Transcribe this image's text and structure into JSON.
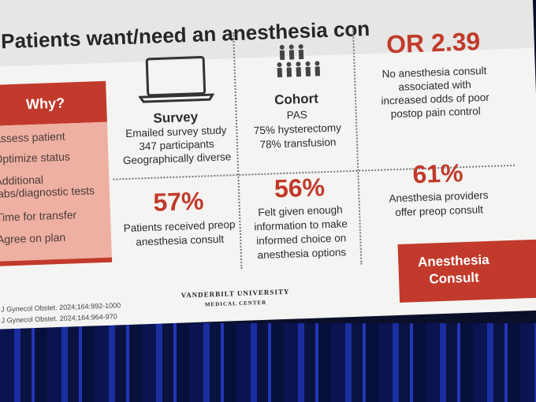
{
  "header": {
    "title": "Patients want/need an anesthesia con"
  },
  "sidebar": {
    "heading": "Why?",
    "items": [
      "Assess patient",
      "Optimize status",
      "Additional",
      "labs/diagnostic tests",
      "Time for transfer",
      "Agree on plan"
    ]
  },
  "survey": {
    "label": "Survey",
    "lines": [
      "Emailed survey study",
      "347 participants",
      "Geographically diverse"
    ]
  },
  "cohort": {
    "label": "Cohort",
    "lines": [
      "PAS",
      "75% hysterectomy",
      "78% transfusion"
    ]
  },
  "odds": {
    "stat": "OR 2.39",
    "lines": [
      "No anesthesia consult",
      "associated with",
      "increased odds of poor",
      "postop pain control"
    ]
  },
  "stats": [
    {
      "stat": "57%",
      "lines": [
        "Patients received preop",
        "anesthesia consult"
      ]
    },
    {
      "stat": "56%",
      "lines": [
        "Felt given enough",
        "information to make",
        "informed choice on",
        "anesthesia options"
      ]
    },
    {
      "stat": "61%",
      "lines": [
        "Anesthesia providers",
        "offer preop consult"
      ]
    }
  ],
  "button": {
    "lines": [
      "Anesthesia",
      "Consult"
    ]
  },
  "references": [
    "J Gynecol Obstet. 2024;164:992-1000",
    "J Gynecol Obstet. 2024;164:964-970"
  ],
  "logo": {
    "name": "VANDERBILT UNIVERSITY",
    "sub": "MEDICAL CENTER"
  }
}
